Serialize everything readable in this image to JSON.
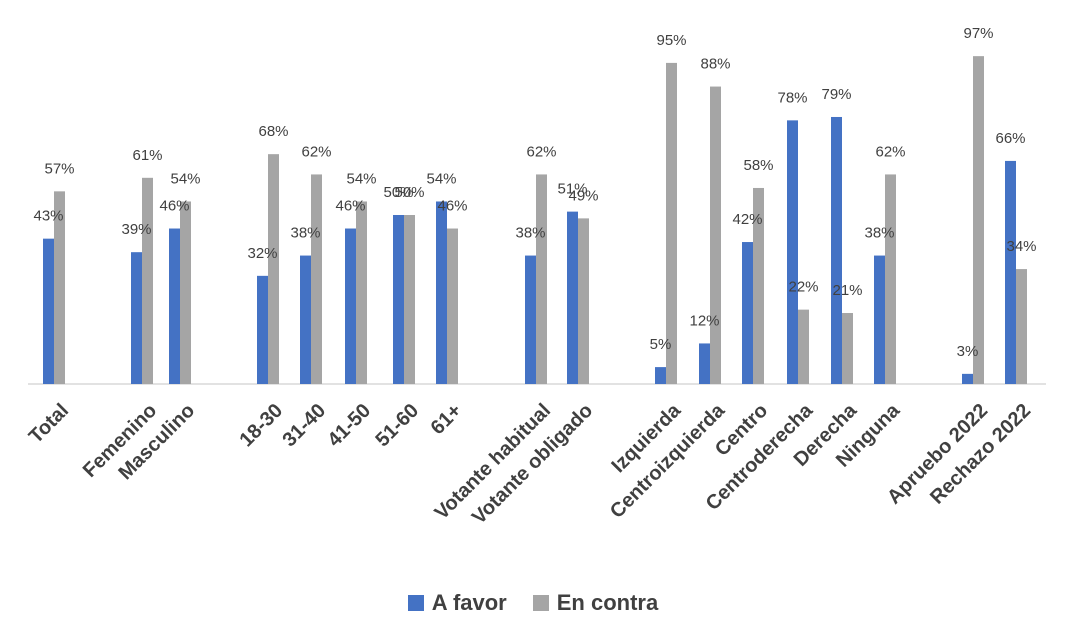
{
  "chart_data": {
    "type": "bar",
    "categories": [
      "Total",
      "Femenino",
      "Masculino",
      "18-30",
      "31-40",
      "41-50",
      "51-60",
      "61+",
      "Votante habitual",
      "Votante obligado",
      "Izquierda",
      "Centroizquierda",
      "Centro",
      "Centroderecha",
      "Derecha",
      "Ninguna",
      "Apruebo 2022",
      "Rechazo 2022"
    ],
    "series": [
      {
        "name": "A favor",
        "color": "#4472C4",
        "values": [
          43,
          39,
          46,
          32,
          38,
          46,
          50,
          54,
          38,
          51,
          5,
          12,
          42,
          78,
          79,
          38,
          3,
          66
        ]
      },
      {
        "name": "En contra",
        "color": "#A5A5A5",
        "values": [
          57,
          61,
          54,
          68,
          62,
          54,
          50,
          46,
          62,
          49,
          95,
          88,
          58,
          22,
          21,
          62,
          97,
          34
        ]
      }
    ],
    "data_labels": {
      "A favor": [
        "43%",
        "39%",
        "46%",
        "32%",
        "38%",
        "46%",
        "50%",
        "54%",
        "38%",
        "51%",
        "5%",
        "12%",
        "42%",
        "78%",
        "79%",
        "38%",
        "3%",
        "66%"
      ],
      "En contra": [
        "57%",
        "61%",
        "54%",
        "68%",
        "62%",
        "54%",
        "50%",
        "46%",
        "62%",
        "49%",
        "95%",
        "88%",
        "58%",
        "22%",
        "21%",
        "62%",
        "97%",
        "34%"
      ]
    },
    "ylim": [
      0,
      100
    ],
    "grid": false,
    "legend_position": "bottom"
  },
  "legend": {
    "items": [
      {
        "label": "A favor",
        "color": "#4472C4"
      },
      {
        "label": "En contra",
        "color": "#A5A5A5"
      }
    ]
  }
}
